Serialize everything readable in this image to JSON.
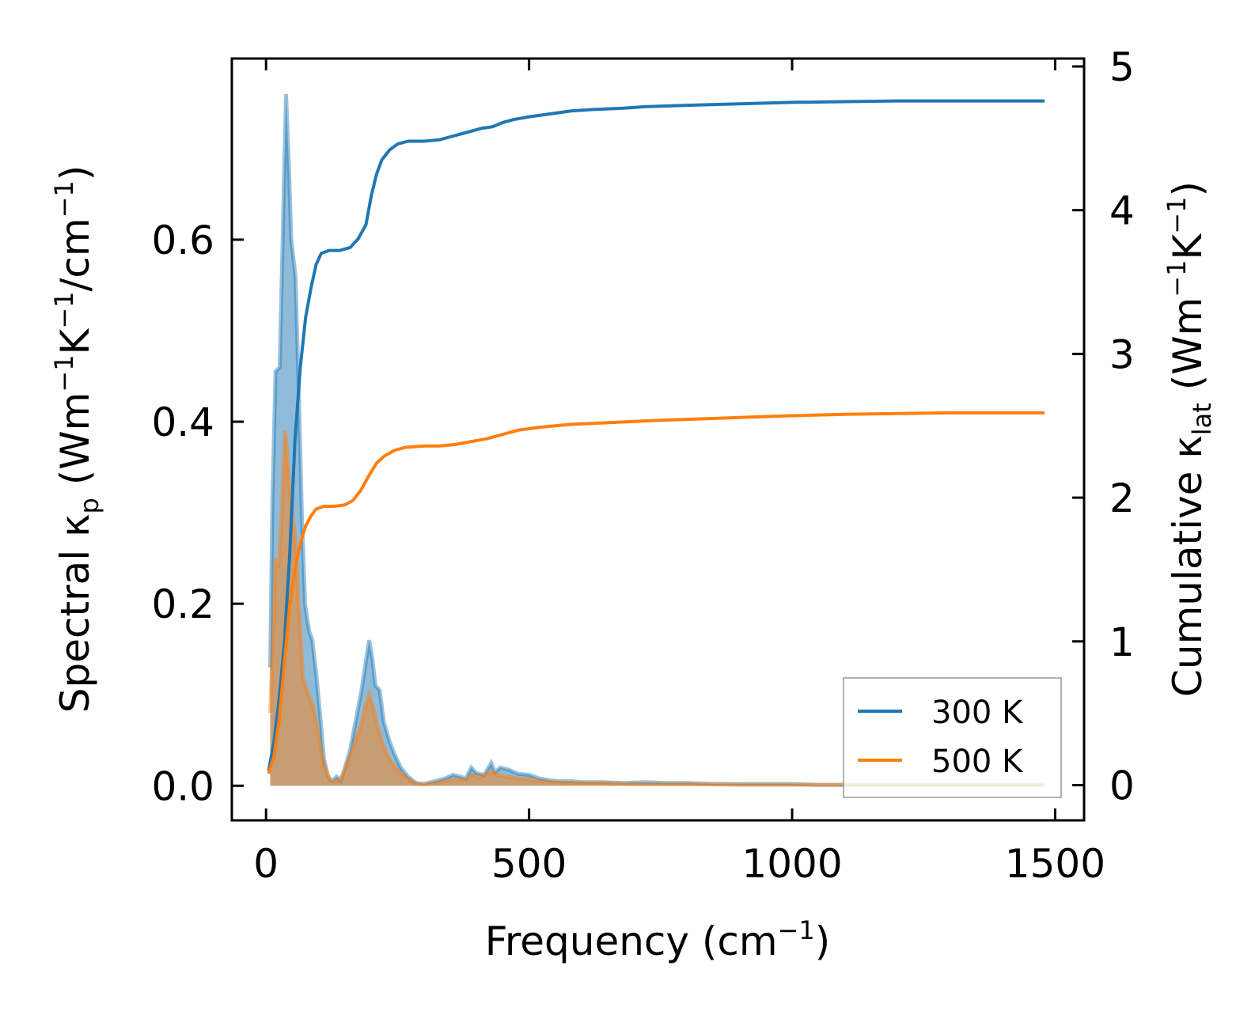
{
  "chart_data": {
    "type": "line",
    "xlabel": {
      "pre": "Frequency (cm",
      "sup": "−1",
      "post": ")"
    },
    "ylabel_left": {
      "p1": "Spectral κ",
      "sub": "p",
      "p2": " (Wm",
      "sup1": "−1",
      "p3": "K",
      "sup2": "−1",
      "p4": "/cm",
      "sup3": "−1",
      "p5": ")"
    },
    "ylabel_right": {
      "p1": "Cumulative κ",
      "sub": "lat",
      "p2": " (Wm",
      "sup1": "−1",
      "p3": "K",
      "sup2": "−1",
      "p4": ")"
    },
    "xlim": [
      -65,
      1555
    ],
    "ylim_left": [
      -0.038,
      0.799
    ],
    "ylim_right": [
      -0.245,
      5.055
    ],
    "xticks": [
      0,
      500,
      1000,
      1500
    ],
    "xtick_labels": [
      "0",
      "500",
      "1000",
      "1500"
    ],
    "yticks_left": [
      0.0,
      0.2,
      0.4,
      0.6
    ],
    "ytick_labels_left": [
      "0.0",
      "0.2",
      "0.4",
      "0.6"
    ],
    "yticks_right": [
      0,
      1,
      2,
      3,
      4,
      5
    ],
    "ytick_labels_right": [
      "0",
      "1",
      "2",
      "3",
      "4",
      "5"
    ],
    "legend_position": "lower-right",
    "series": [
      {
        "name": "300 K",
        "color": "#1f77b4",
        "spectral": [
          [
            8,
            0.13
          ],
          [
            12,
            0.31
          ],
          [
            18,
            0.455
          ],
          [
            26,
            0.46
          ],
          [
            34,
            0.66
          ],
          [
            38,
            0.76
          ],
          [
            44,
            0.67
          ],
          [
            48,
            0.6
          ],
          [
            56,
            0.56
          ],
          [
            62,
            0.44
          ],
          [
            68,
            0.3
          ],
          [
            74,
            0.2
          ],
          [
            82,
            0.17
          ],
          [
            88,
            0.16
          ],
          [
            96,
            0.12
          ],
          [
            104,
            0.07
          ],
          [
            110,
            0.03
          ],
          [
            118,
            0.01
          ],
          [
            126,
            0.005
          ],
          [
            134,
            0.01
          ],
          [
            142,
            0.005
          ],
          [
            150,
            0.02
          ],
          [
            160,
            0.04
          ],
          [
            170,
            0.07
          ],
          [
            180,
            0.1
          ],
          [
            188,
            0.13
          ],
          [
            196,
            0.16
          ],
          [
            202,
            0.14
          ],
          [
            208,
            0.11
          ],
          [
            216,
            0.105
          ],
          [
            224,
            0.07
          ],
          [
            234,
            0.05
          ],
          [
            244,
            0.035
          ],
          [
            256,
            0.02
          ],
          [
            270,
            0.01
          ],
          [
            285,
            0.003
          ],
          [
            300,
            0.002
          ],
          [
            320,
            0.005
          ],
          [
            340,
            0.008
          ],
          [
            355,
            0.012
          ],
          [
            370,
            0.01
          ],
          [
            380,
            0.008
          ],
          [
            390,
            0.02
          ],
          [
            400,
            0.014
          ],
          [
            415,
            0.012
          ],
          [
            428,
            0.025
          ],
          [
            435,
            0.015
          ],
          [
            445,
            0.02
          ],
          [
            460,
            0.018
          ],
          [
            480,
            0.013
          ],
          [
            500,
            0.012
          ],
          [
            520,
            0.008
          ],
          [
            540,
            0.006
          ],
          [
            560,
            0.005
          ],
          [
            580,
            0.005
          ],
          [
            600,
            0.004
          ],
          [
            640,
            0.004
          ],
          [
            680,
            0.003
          ],
          [
            720,
            0.004
          ],
          [
            760,
            0.003
          ],
          [
            800,
            0.003
          ],
          [
            850,
            0.002
          ],
          [
            900,
            0.002
          ],
          [
            950,
            0.002
          ],
          [
            1000,
            0.002
          ],
          [
            1050,
            0.001
          ],
          [
            1100,
            0.001
          ],
          [
            1150,
            0.001
          ],
          [
            1200,
            0.001
          ],
          [
            1300,
            0.001
          ],
          [
            1400,
            0.001
          ],
          [
            1480,
            0.001
          ]
        ],
        "cumulative": [
          [
            5,
            0.1
          ],
          [
            15,
            0.3
          ],
          [
            25,
            0.6
          ],
          [
            35,
            1.0
          ],
          [
            45,
            1.6
          ],
          [
            55,
            2.4
          ],
          [
            65,
            2.9
          ],
          [
            75,
            3.25
          ],
          [
            85,
            3.45
          ],
          [
            95,
            3.62
          ],
          [
            105,
            3.7
          ],
          [
            120,
            3.72
          ],
          [
            140,
            3.72
          ],
          [
            160,
            3.74
          ],
          [
            175,
            3.8
          ],
          [
            190,
            3.9
          ],
          [
            200,
            4.1
          ],
          [
            210,
            4.25
          ],
          [
            220,
            4.35
          ],
          [
            235,
            4.42
          ],
          [
            250,
            4.46
          ],
          [
            270,
            4.48
          ],
          [
            300,
            4.48
          ],
          [
            330,
            4.49
          ],
          [
            350,
            4.51
          ],
          [
            370,
            4.53
          ],
          [
            390,
            4.55
          ],
          [
            410,
            4.57
          ],
          [
            430,
            4.58
          ],
          [
            450,
            4.61
          ],
          [
            470,
            4.63
          ],
          [
            500,
            4.65
          ],
          [
            540,
            4.67
          ],
          [
            580,
            4.69
          ],
          [
            620,
            4.7
          ],
          [
            680,
            4.71
          ],
          [
            720,
            4.72
          ],
          [
            800,
            4.73
          ],
          [
            900,
            4.74
          ],
          [
            1000,
            4.75
          ],
          [
            1100,
            4.755
          ],
          [
            1200,
            4.76
          ],
          [
            1300,
            4.76
          ],
          [
            1480,
            4.76
          ]
        ]
      },
      {
        "name": "500 K",
        "color": "#ff7f0e",
        "spectral": [
          [
            8,
            0.08
          ],
          [
            14,
            0.18
          ],
          [
            18,
            0.25
          ],
          [
            24,
            0.24
          ],
          [
            30,
            0.3
          ],
          [
            36,
            0.39
          ],
          [
            40,
            0.37
          ],
          [
            44,
            0.33
          ],
          [
            50,
            0.3
          ],
          [
            56,
            0.27
          ],
          [
            62,
            0.2
          ],
          [
            70,
            0.12
          ],
          [
            80,
            0.1
          ],
          [
            88,
            0.09
          ],
          [
            96,
            0.07
          ],
          [
            104,
            0.04
          ],
          [
            112,
            0.02
          ],
          [
            122,
            0.006
          ],
          [
            134,
            0.004
          ],
          [
            146,
            0.012
          ],
          [
            158,
            0.03
          ],
          [
            170,
            0.05
          ],
          [
            182,
            0.07
          ],
          [
            190,
            0.09
          ],
          [
            196,
            0.1
          ],
          [
            204,
            0.085
          ],
          [
            212,
            0.065
          ],
          [
            222,
            0.045
          ],
          [
            234,
            0.03
          ],
          [
            246,
            0.02
          ],
          [
            260,
            0.012
          ],
          [
            276,
            0.005
          ],
          [
            290,
            0.002
          ],
          [
            310,
            0.002
          ],
          [
            340,
            0.005
          ],
          [
            360,
            0.007
          ],
          [
            380,
            0.006
          ],
          [
            392,
            0.012
          ],
          [
            405,
            0.009
          ],
          [
            428,
            0.016
          ],
          [
            440,
            0.012
          ],
          [
            460,
            0.01
          ],
          [
            480,
            0.008
          ],
          [
            500,
            0.007
          ],
          [
            540,
            0.004
          ],
          [
            580,
            0.003
          ],
          [
            640,
            0.003
          ],
          [
            700,
            0.002
          ],
          [
            760,
            0.002
          ],
          [
            820,
            0.002
          ],
          [
            900,
            0.001
          ],
          [
            1000,
            0.001
          ],
          [
            1100,
            0.001
          ],
          [
            1200,
            0.001
          ],
          [
            1300,
            0.001
          ],
          [
            1400,
            0.001
          ],
          [
            1480,
            0.001
          ]
        ],
        "cumulative": [
          [
            5,
            0.08
          ],
          [
            15,
            0.2
          ],
          [
            25,
            0.45
          ],
          [
            35,
            0.85
          ],
          [
            45,
            1.25
          ],
          [
            55,
            1.5
          ],
          [
            65,
            1.68
          ],
          [
            75,
            1.8
          ],
          [
            85,
            1.87
          ],
          [
            95,
            1.92
          ],
          [
            110,
            1.94
          ],
          [
            130,
            1.94
          ],
          [
            150,
            1.95
          ],
          [
            165,
            1.98
          ],
          [
            180,
            2.05
          ],
          [
            195,
            2.15
          ],
          [
            210,
            2.24
          ],
          [
            225,
            2.29
          ],
          [
            245,
            2.33
          ],
          [
            265,
            2.35
          ],
          [
            300,
            2.36
          ],
          [
            330,
            2.36
          ],
          [
            360,
            2.37
          ],
          [
            390,
            2.39
          ],
          [
            420,
            2.41
          ],
          [
            450,
            2.44
          ],
          [
            480,
            2.47
          ],
          [
            520,
            2.49
          ],
          [
            580,
            2.51
          ],
          [
            640,
            2.52
          ],
          [
            700,
            2.53
          ],
          [
            760,
            2.54
          ],
          [
            840,
            2.55
          ],
          [
            920,
            2.56
          ],
          [
            1000,
            2.57
          ],
          [
            1100,
            2.58
          ],
          [
            1200,
            2.585
          ],
          [
            1300,
            2.59
          ],
          [
            1480,
            2.59
          ]
        ]
      }
    ]
  }
}
